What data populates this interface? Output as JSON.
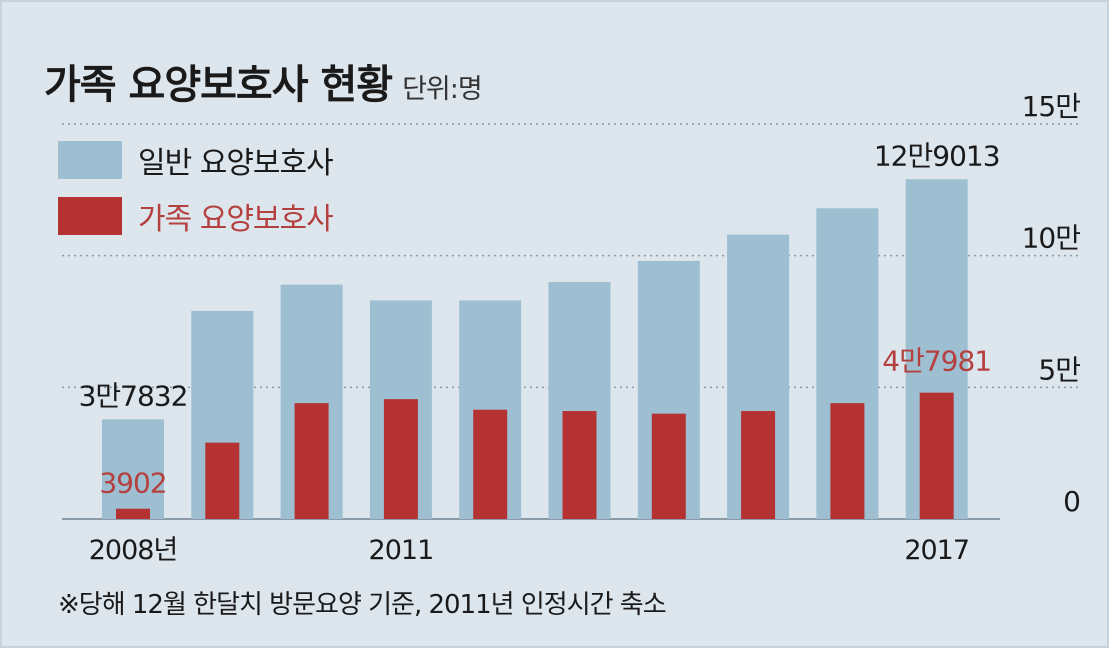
{
  "title": "가족 요양보호사 현황",
  "unit": "단위:명",
  "legend": {
    "general": "일반 요양보호사",
    "family": "가족 요양보호사"
  },
  "footnote": "※당해 12월 한달치 방문요양 기준, 2011년 인정시간 축소",
  "colors": {
    "background": "#dde6ed",
    "general": "#9dbfd1",
    "family": "#b43332",
    "family_label": "#b4403f",
    "text": "#1a1a1a"
  },
  "chart_data": {
    "type": "bar",
    "categories": [
      "2008",
      "2009",
      "2010",
      "2011",
      "2012",
      "2013",
      "2014",
      "2015",
      "2016",
      "2017"
    ],
    "x_tick_labels": [
      {
        "index": 0,
        "label": "2008년"
      },
      {
        "index": 3,
        "label": "2011"
      },
      {
        "index": 9,
        "label": "2017"
      }
    ],
    "series": [
      {
        "name": "일반 요양보호사",
        "color": "#9dbfd1",
        "values": [
          37832,
          79000,
          89000,
          83000,
          83000,
          90000,
          98000,
          108000,
          118000,
          129013
        ]
      },
      {
        "name": "가족 요양보호사",
        "color": "#b43332",
        "values": [
          3902,
          29000,
          44000,
          45500,
          41500,
          41000,
          40000,
          41000,
          44000,
          47981
        ]
      }
    ],
    "data_labels": [
      {
        "series": 0,
        "index": 0,
        "text": "3만7832"
      },
      {
        "series": 1,
        "index": 0,
        "text": "3902"
      },
      {
        "series": 0,
        "index": 9,
        "text": "12만9013"
      },
      {
        "series": 1,
        "index": 9,
        "text": "4만7981"
      }
    ],
    "y_ticks": [
      {
        "value": 0,
        "label": "0"
      },
      {
        "value": 50000,
        "label": "5만"
      },
      {
        "value": 100000,
        "label": "10만"
      },
      {
        "value": 150000,
        "label": "15만"
      }
    ],
    "ylim": [
      0,
      150000
    ],
    "grid": "dotted horizontal",
    "legend_position": "top-left"
  }
}
